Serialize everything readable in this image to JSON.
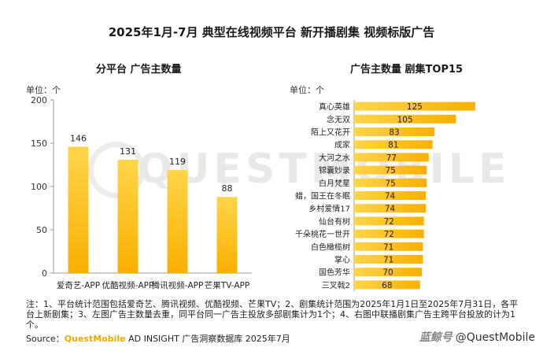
{
  "title": "2025年1月-7月 典型在线视频平台 新开播剧集 视频标版广告",
  "colors": {
    "bar": "#f9b000",
    "bar_light": "#ffd54a",
    "axis": "#999999"
  },
  "chart_data": [
    {
      "type": "bar",
      "title": "分平台 广告主数量",
      "unit": "单位：个",
      "categories": [
        "爱奇艺-APP",
        "优酷视频-APP",
        "腾讯视频-APP",
        "芒果TV-APP"
      ],
      "values": [
        146,
        131,
        119,
        88
      ],
      "yticks": [
        "0",
        "50",
        "100",
        "150",
        "200"
      ],
      "ylim": [
        0,
        200
      ]
    },
    {
      "type": "bar",
      "orientation": "horizontal",
      "title": "广告主数量 剧集TOP15",
      "unit": "单位：个",
      "categories": [
        "真心英雄",
        "念无双",
        "陌上又花开",
        "成家",
        "大河之水",
        "锦囊妙录",
        "白月梵星",
        "蜡，国王在冬眠",
        "乡村爱情17",
        "仙台有树",
        "千朵桃花一世开",
        "白色橄榄树",
        "掌心",
        "国色芳华",
        "三叉戟2"
      ],
      "values": [
        125,
        105,
        83,
        81,
        77,
        75,
        75,
        74,
        74,
        72,
        72,
        71,
        71,
        70,
        68
      ],
      "xlim": [
        0,
        130
      ]
    }
  ],
  "watermark": "QUESTMOBILE",
  "note": "注：1、平台统计范围包括爱奇艺、腾讯视频、优酷视频、芒果TV；2、剧集统计范围为2025年1月1日至2025年7月31日，各平台上新剧集；3、左图广告主数量去重，同平台同一广告主投放多部剧集计为1个；4、右图中联播剧集广告主跨平台投放的计为1个。",
  "source": {
    "prefix": "Source：",
    "brand": "QuestMobile",
    "rest": " AD INSIGHT 广告洞察数据库 2025年7月"
  },
  "footer": {
    "app": "蓝鲸号",
    "handle": "@QuestMobile"
  }
}
